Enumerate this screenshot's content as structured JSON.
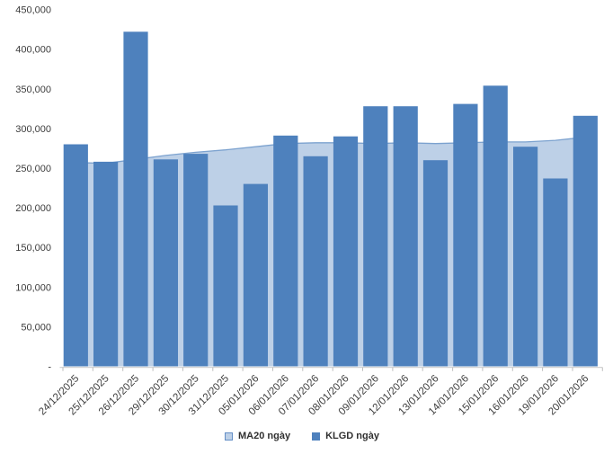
{
  "chart_data": {
    "type": "bar",
    "title": "",
    "xlabel": "",
    "ylabel": "",
    "grid": false,
    "legend_position": "bottom",
    "ylim": [
      0,
      450000
    ],
    "ytick_step": 50000,
    "ytick_labels": [
      "-",
      "50,000",
      "100,000",
      "150,000",
      "200,000",
      "250,000",
      "300,000",
      "350,000",
      "400,000",
      "450,000"
    ],
    "categories": [
      "24/12/2025",
      "25/12/2025",
      "26/12/2025",
      "29/12/2025",
      "30/12/2025",
      "31/12/2025",
      "05/01/2026",
      "06/01/2026",
      "07/01/2026",
      "08/01/2026",
      "09/01/2026",
      "12/01/2026",
      "13/01/2026",
      "14/01/2026",
      "15/01/2026",
      "16/01/2026",
      "19/01/2026",
      "20/01/2026"
    ],
    "series": [
      {
        "name": "MA20 ngày",
        "render": "area",
        "values": [
          257000,
          256000,
          261000,
          266000,
          270000,
          273000,
          277000,
          281000,
          282000,
          282000,
          281000,
          282000,
          281000,
          282000,
          283000,
          283000,
          285000,
          289000
        ]
      },
      {
        "name": "KLGD ngày",
        "render": "bar",
        "values": [
          280000,
          258000,
          422000,
          261000,
          268000,
          203000,
          230000,
          291000,
          265000,
          290000,
          328000,
          328000,
          260000,
          331000,
          354000,
          277000,
          237000,
          316000
        ]
      }
    ]
  },
  "colors": {
    "bar_fill": "#4E81BD",
    "area_fill": "#BDD0E7",
    "area_line": "#7CA2CF",
    "axis_line": "#D2D2D2",
    "tick_mark": "#BFBFBF",
    "axis_text": "#3D3D3D",
    "legend_text": "#303030",
    "swatch_border": "#638EC6"
  }
}
